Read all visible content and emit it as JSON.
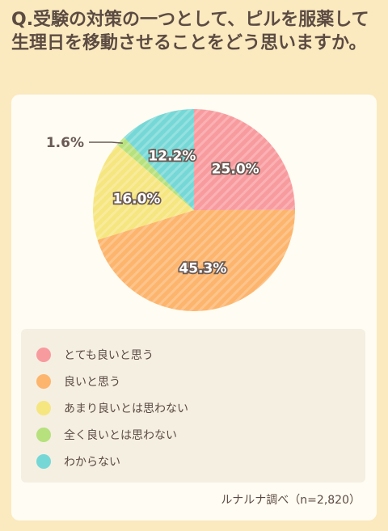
{
  "question": "Q.受験の対策の一つとして、ピルを服薬して生理日を移動させることをどう思いますか。",
  "source": "ルナルナ調べ（n=2,820）",
  "colors": {
    "slice_1": "#f89b9e",
    "slice_2": "#fdb56d",
    "slice_3": "#f6e680",
    "slice_4": "#b6e17c",
    "slice_5": "#76d8d6",
    "page_background": "#fbe9bf",
    "card_background": "#fffcf3"
  },
  "chart_data": {
    "type": "pie",
    "title": "",
    "slices": [
      {
        "label": "とても良いと思う",
        "value": 25.0,
        "display": "25.0%"
      },
      {
        "label": "良いと思う",
        "value": 45.3,
        "display": "45.3%"
      },
      {
        "label": "あまり良いとは思わない",
        "value": 16.0,
        "display": "16.0%"
      },
      {
        "label": "全く良いとは思わない",
        "value": 1.6,
        "display": "1.6%"
      },
      {
        "label": "わからない",
        "value": 12.2,
        "display": "12.2%"
      }
    ],
    "legend_position": "bottom"
  }
}
